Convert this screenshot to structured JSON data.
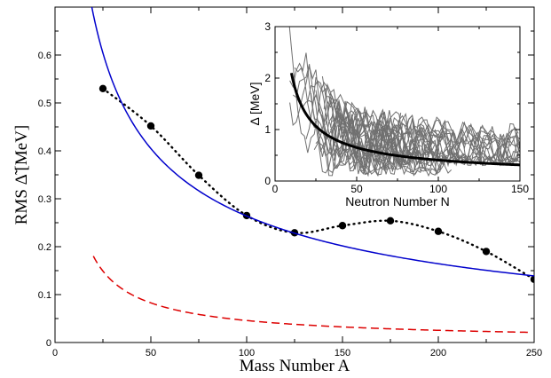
{
  "chart_data": [
    {
      "type": "line",
      "xlabel": "Mass Number A",
      "ylabel": "RMS Δ̃ [MeV]",
      "xlim": [
        0,
        250
      ],
      "ylim": [
        0,
        0.7
      ],
      "x_ticks": [
        "0",
        "50",
        "100",
        "150",
        "200",
        "250"
      ],
      "y_ticks": [
        "0",
        "0.1",
        "0.2",
        "0.3",
        "0.4",
        "0.5",
        "0.6"
      ],
      "series": [
        {
          "style": "dotted-markers",
          "color": "#000000",
          "points": [
            [
              25,
              0.53
            ],
            [
              50,
              0.452
            ],
            [
              75,
              0.349
            ],
            [
              100,
              0.265
            ],
            [
              125,
              0.229
            ],
            [
              150,
              0.244
            ],
            [
              175,
              0.254
            ],
            [
              200,
              0.232
            ],
            [
              225,
              0.19
            ],
            [
              250,
              0.132
            ]
          ]
        },
        {
          "style": "solid",
          "color": "#0000cc",
          "formula": "3.4/sqrt(A)-0.076",
          "x_range": [
            9,
            250
          ]
        },
        {
          "style": "dashed",
          "color": "#dd0000",
          "formula": "2.3/A^0.85",
          "x_range": [
            20,
            248
          ]
        }
      ]
    },
    {
      "type": "line",
      "inset": true,
      "xlabel": "Neutron Number N",
      "ylabel": "Δ [MeV]",
      "xlim": [
        0,
        150
      ],
      "ylim": [
        0,
        3
      ],
      "x_ticks": [
        "0",
        "50",
        "100",
        "150"
      ],
      "y_ticks": [
        "0",
        "1",
        "2",
        "3"
      ],
      "series": [
        {
          "style": "bold-solid",
          "color": "#000000",
          "formula": "12/N^0.77+0.06",
          "x_range": [
            10,
            150
          ]
        },
        {
          "style": "grey-bundle",
          "color": "#707070",
          "x_range": [
            8,
            150
          ]
        }
      ]
    }
  ]
}
